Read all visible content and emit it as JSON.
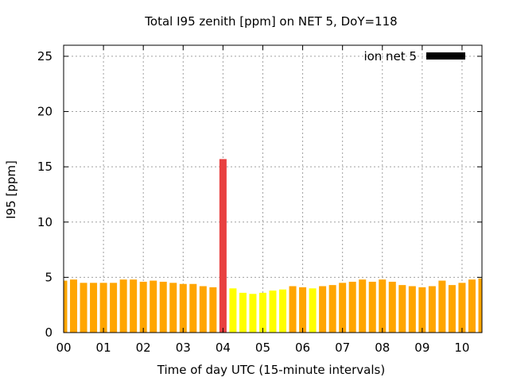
{
  "chart_data": {
    "type": "bar",
    "title": "Total I95 zenith [ppm] on NET 5, DoY=118",
    "xlabel": "Time of day UTC (15-minute intervals)",
    "ylabel": "I95 [ppm]",
    "xlim": [
      0,
      10.5
    ],
    "ylim": [
      0,
      26
    ],
    "yticks": [
      0,
      5,
      10,
      15,
      20,
      25
    ],
    "xticks": [
      {
        "value": 0,
        "label": "00"
      },
      {
        "value": 1,
        "label": "01"
      },
      {
        "value": 2,
        "label": "02"
      },
      {
        "value": 3,
        "label": "03"
      },
      {
        "value": 4,
        "label": "04"
      },
      {
        "value": 5,
        "label": "05"
      },
      {
        "value": 6,
        "label": "06"
      },
      {
        "value": 7,
        "label": "07"
      },
      {
        "value": 8,
        "label": "08"
      },
      {
        "value": 9,
        "label": "09"
      },
      {
        "value": 10,
        "label": "10"
      }
    ],
    "grid": true,
    "legend": {
      "label": "ion net 5",
      "color": "#000000",
      "position": "top-right"
    },
    "colors": {
      "orange": "#ffa500",
      "yellow": "#ffff00",
      "red": "#e84040"
    },
    "interval_hours": 0.25,
    "series": [
      {
        "x": [
          0,
          0.25,
          0.5,
          0.75,
          1,
          1.25,
          1.5,
          1.75,
          2,
          2.25,
          2.5,
          2.75,
          3,
          3.25,
          3.5,
          3.75,
          4,
          4.25,
          4.5,
          4.75,
          5,
          5.25,
          5.5,
          5.75,
          6,
          6.25,
          6.5,
          6.75,
          7,
          7.25,
          7.5,
          7.75,
          8,
          8.25,
          8.5,
          8.75,
          9,
          9.25,
          9.5,
          9.75,
          10,
          10.25,
          10.5
        ],
        "values": [
          4.7,
          4.8,
          4.5,
          4.5,
          4.5,
          4.5,
          4.8,
          4.8,
          4.6,
          4.7,
          4.6,
          4.5,
          4.4,
          4.4,
          4.2,
          4.1,
          15.7,
          4.0,
          3.6,
          3.5,
          3.6,
          3.8,
          3.9,
          4.2,
          4.1,
          4.0,
          4.2,
          4.3,
          4.5,
          4.6,
          4.8,
          4.6,
          4.8,
          4.6,
          4.3,
          4.2,
          4.1,
          4.2,
          4.7,
          4.3,
          4.5,
          4.8,
          4.9
        ],
        "colors": [
          "orange",
          "orange",
          "orange",
          "orange",
          "orange",
          "orange",
          "orange",
          "orange",
          "orange",
          "orange",
          "orange",
          "orange",
          "orange",
          "orange",
          "orange",
          "orange",
          "red",
          "yellow",
          "yellow",
          "yellow",
          "yellow",
          "yellow",
          "yellow",
          "orange",
          "orange",
          "yellow",
          "orange",
          "orange",
          "orange",
          "orange",
          "orange",
          "orange",
          "orange",
          "orange",
          "orange",
          "orange",
          "orange",
          "orange",
          "orange",
          "orange",
          "orange",
          "orange",
          "orange"
        ]
      }
    ]
  }
}
